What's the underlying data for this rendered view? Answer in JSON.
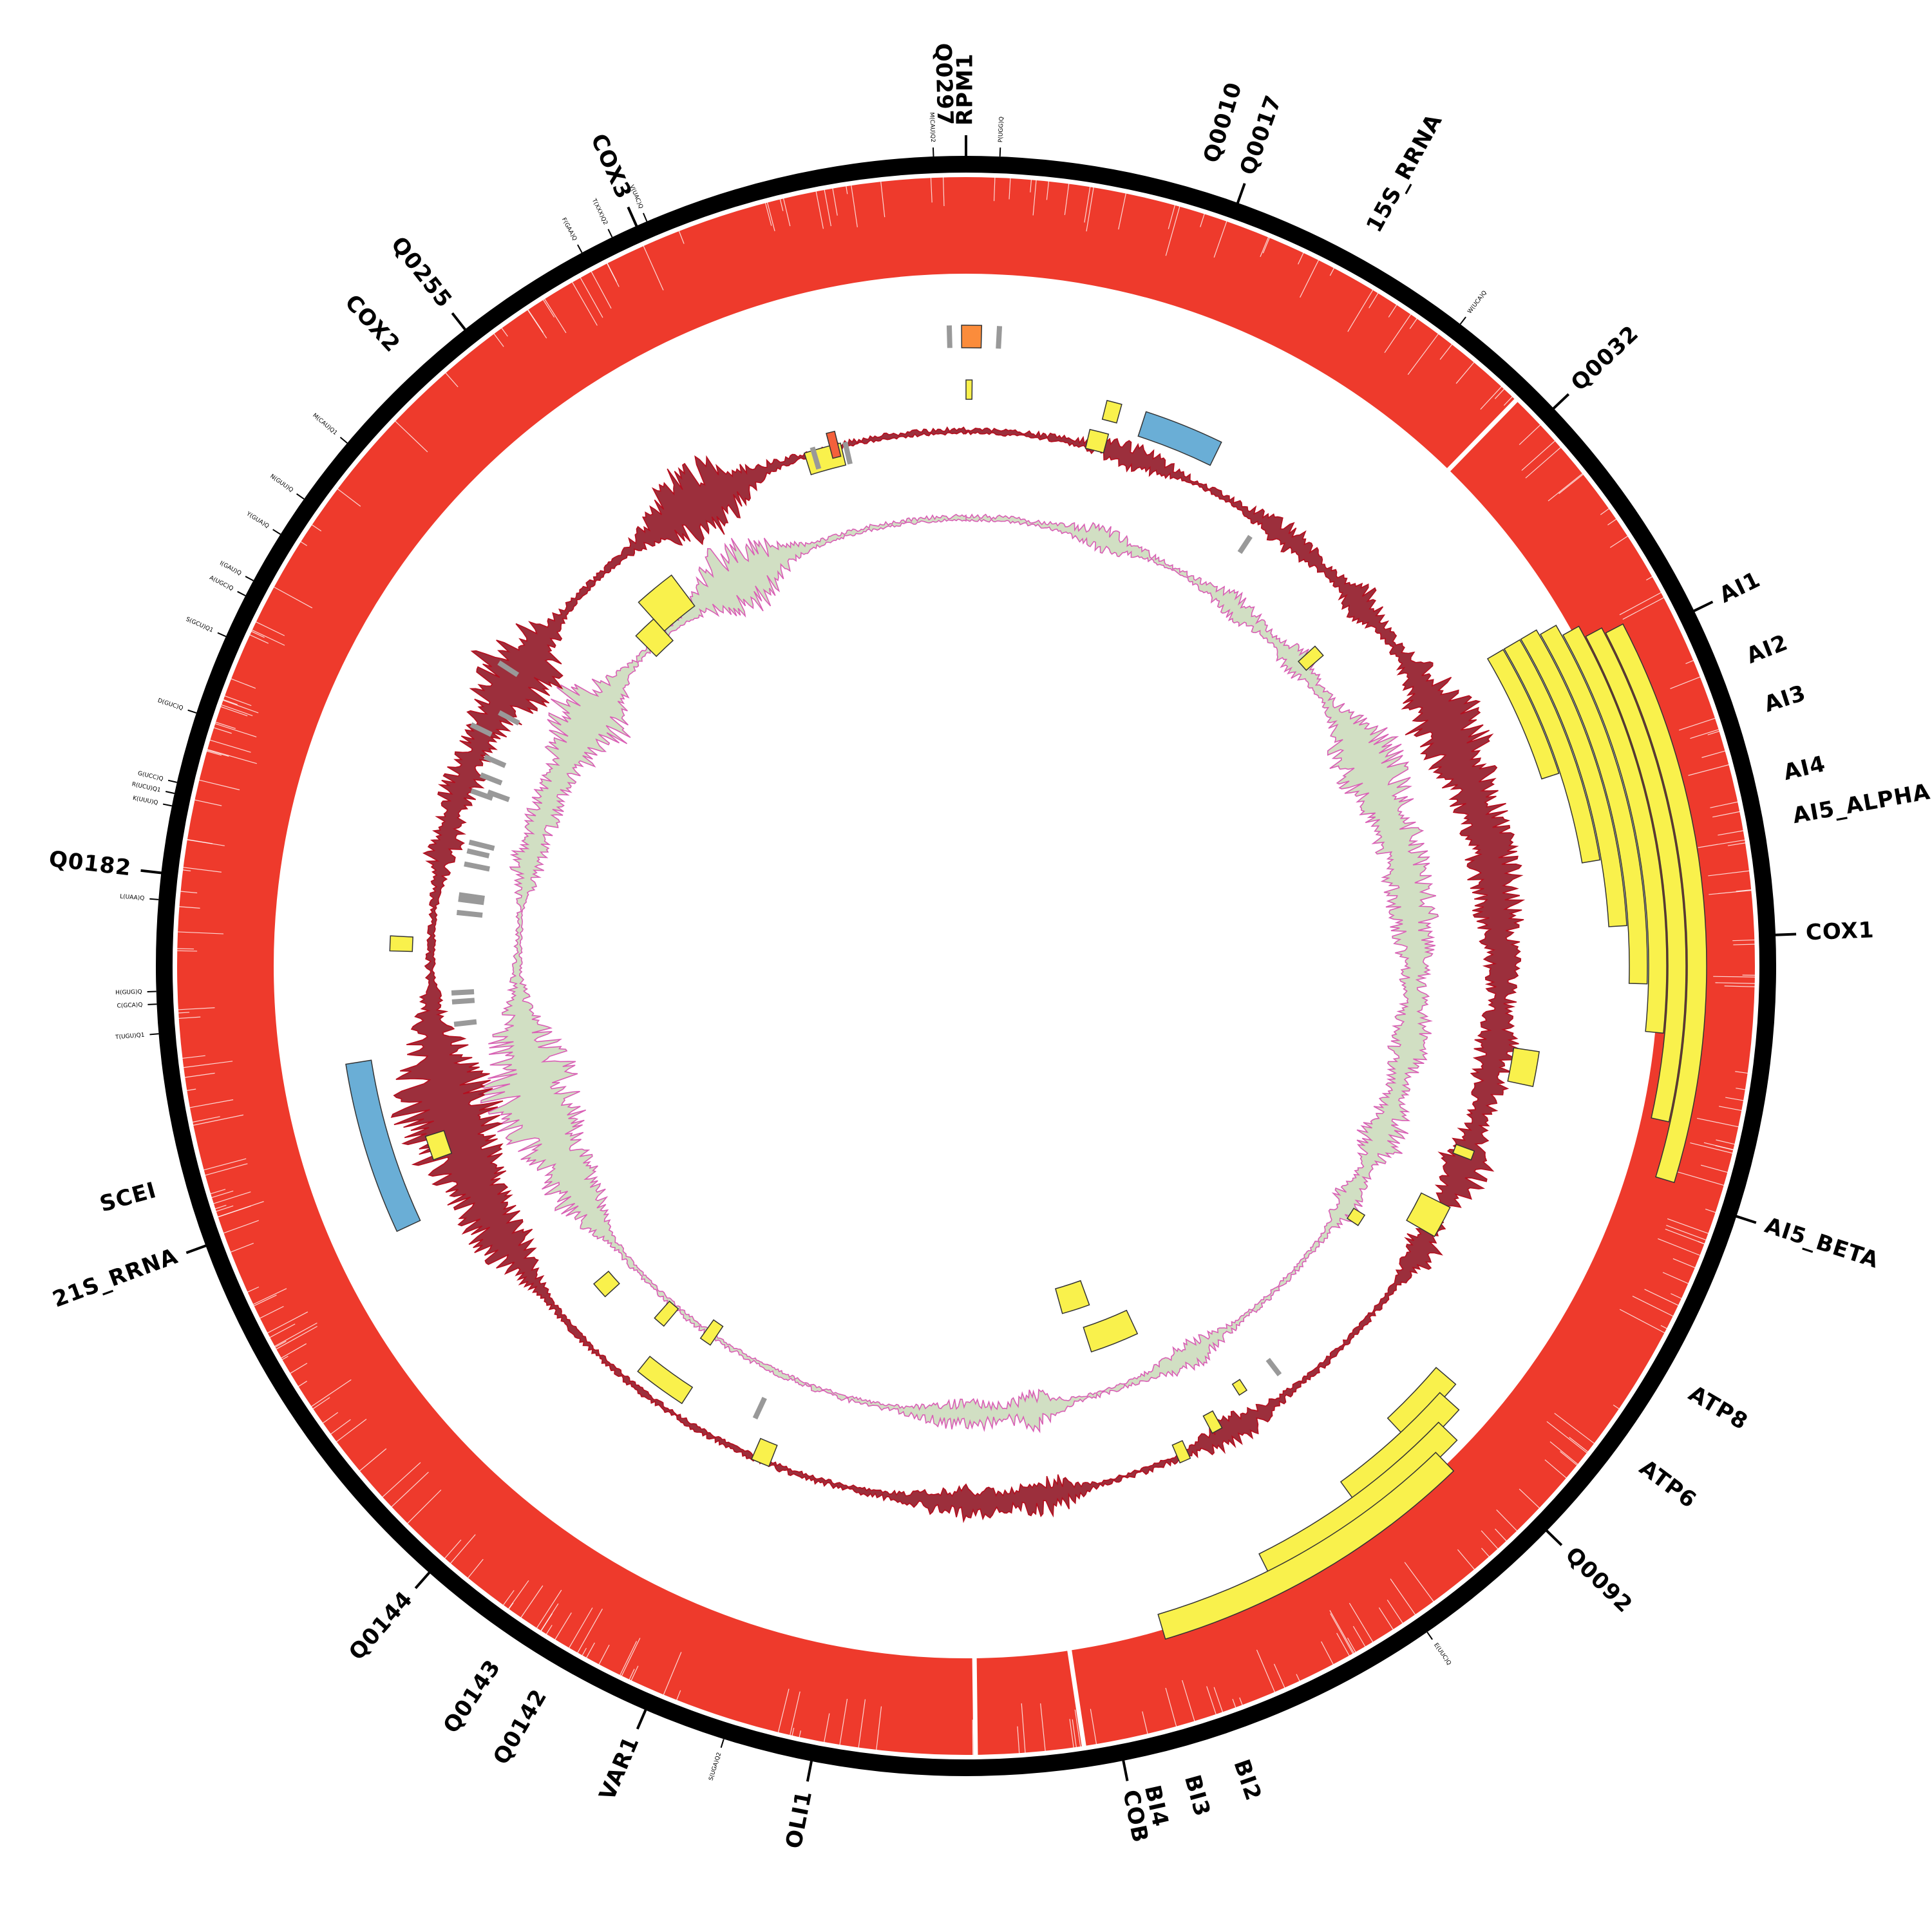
{
  "colors": {
    "outer_ring": "#000000",
    "coverage": "#ee3a2c",
    "exon": "#f9f14c",
    "rrna": "#6aaed6",
    "trna_tick": "#999999",
    "orange_feature": "#fb8c3b",
    "red_feature": "#f4603b",
    "gc_line": "#b50e1e",
    "gc_fill": "#8b0a1a",
    "skew_line": "#d95fb5",
    "skew_fill": "#c9d9b8"
  },
  "gene_labels": [
    {
      "text": "RPM1",
      "angle": 0.0,
      "tick": true
    },
    {
      "text": "Q0297",
      "angle": -1.5,
      "tick": false
    },
    {
      "text": "Q0010",
      "angle": 17.0,
      "tick": false
    },
    {
      "text": "Q0017",
      "angle": 19.6,
      "tick": true
    },
    {
      "text": "15S_RRNA",
      "angle": 29.0,
      "tick": false
    },
    {
      "text": "Q0032",
      "angle": 46.5,
      "tick": true
    },
    {
      "text": "AI1",
      "angle": 64.0,
      "tick": true
    },
    {
      "text": "AI2",
      "angle": 68.5,
      "tick": false
    },
    {
      "text": "AI3",
      "angle": 72.0,
      "tick": false
    },
    {
      "text": "AI4",
      "angle": 76.8,
      "tick": false
    },
    {
      "text": "AI5_ALPHA",
      "angle": 79.8,
      "tick": false
    },
    {
      "text": "COX1",
      "angle": 87.8,
      "tick": true
    },
    {
      "text": "AI5_BETA",
      "angle": 108.0,
      "tick": true
    },
    {
      "text": "ATP8",
      "angle": 120.5,
      "tick": false
    },
    {
      "text": "ATP6",
      "angle": 126.5,
      "tick": false
    },
    {
      "text": "Q0092",
      "angle": 134.2,
      "tick": true
    },
    {
      "text": "BI2",
      "angle": 161.0,
      "tick": false
    },
    {
      "text": "BI3",
      "angle": 164.5,
      "tick": false
    },
    {
      "text": "BI4",
      "angle": 167.3,
      "tick": false
    },
    {
      "text": "COB",
      "angle": 168.8,
      "tick": true
    },
    {
      "text": "OLI1",
      "angle": 191.0,
      "tick": true
    },
    {
      "text": "VAR1",
      "angle": 203.3,
      "tick": true
    },
    {
      "text": "Q0142",
      "angle": 210.3,
      "tick": false
    },
    {
      "text": "Q0143",
      "angle": 214.0,
      "tick": false
    },
    {
      "text": "Q0144",
      "angle": 221.5,
      "tick": true
    },
    {
      "text": "21S_RRNA",
      "angle": 249.8,
      "tick": true
    },
    {
      "text": "SCEI",
      "angle": 254.5,
      "tick": false
    },
    {
      "text": "Q0182",
      "angle": 276.6,
      "tick": true
    },
    {
      "text": "COX2",
      "angle": 317.2,
      "tick": false
    },
    {
      "text": "Q0255",
      "angle": 321.8,
      "tick": true
    },
    {
      "text": "COX3",
      "angle": 336.0,
      "tick": true
    }
  ],
  "trna_labels": [
    {
      "text": "M(CAU)Q2",
      "angle": -2.3
    },
    {
      "text": "P(UGG)Q",
      "angle": 2.4
    },
    {
      "text": "W(UCA)Q",
      "angle": 37.6
    },
    {
      "text": "E(UUC)Q",
      "angle": 145.3
    },
    {
      "text": "S(UGA)Q2",
      "angle": 197.4
    },
    {
      "text": "T(UGU)Q1",
      "angle": 265.2
    },
    {
      "text": "C(GCA)Q",
      "angle": 267.3
    },
    {
      "text": "H(GUG)Q",
      "angle": 268.2
    },
    {
      "text": "L(UAA)Q",
      "angle": 274.7
    },
    {
      "text": "K(UUU)Q",
      "angle": 281.4
    },
    {
      "text": "R(UCU)Q1",
      "angle": 282.3
    },
    {
      "text": "G(UCC)Q",
      "angle": 283.1
    },
    {
      "text": "D(GUC)Q",
      "angle": 288.2
    },
    {
      "text": "S(GCU)Q1",
      "angle": 294.0
    },
    {
      "text": "A(UGC)Q",
      "angle": 297.2
    },
    {
      "text": "I(GAU)Q",
      "angle": 298.4
    },
    {
      "text": "Y(GUA)Q",
      "angle": 302.2
    },
    {
      "text": "N(GUU)Q",
      "angle": 305.2
    },
    {
      "text": "M(CAU)Q1",
      "angle": 310.2
    },
    {
      "text": "F(GAA)Q",
      "angle": 331.7
    },
    {
      "text": "T(XXX)Q2",
      "angle": 334.1
    },
    {
      "text": "V(UAC)Q",
      "angle": 336.8
    }
  ],
  "coverage_gaps": [
    44.2,
    171.4,
    179.3
  ],
  "exon_features": [
    {
      "a1": 62.5,
      "a2": 107.0,
      "r1": 1120,
      "r2": 1150
    },
    {
      "a1": 62.0,
      "a2": 102.5,
      "r1": 1090,
      "r2": 1118
    },
    {
      "a1": 61.0,
      "a2": 95.5,
      "r1": 1060,
      "r2": 1088
    },
    {
      "a1": 60.0,
      "a2": 91.5,
      "r1": 1030,
      "r2": 1058
    },
    {
      "a1": 59.5,
      "a2": 86.5,
      "r1": 1000,
      "r2": 1028
    },
    {
      "a1": 59.5,
      "a2": 80.5,
      "r1": 970,
      "r2": 998
    },
    {
      "a1": 59.5,
      "a2": 72.0,
      "r1": 940,
      "r2": 968
    },
    {
      "a1": 0.0,
      "a2": 0.6,
      "r1": 880,
      "r2": 910
    },
    {
      "a1": 14.0,
      "a2": 15.5,
      "r1": 875,
      "r2": 905
    },
    {
      "a1": 13.0,
      "a2": 15.0,
      "r1": 825,
      "r2": 855
    },
    {
      "a1": -17.5,
      "a2": -13.5,
      "r1": 800,
      "r2": 835
    },
    {
      "a1": -42.0,
      "a2": -37.0,
      "r1": 700,
      "r2": 760
    },
    {
      "a1": -45.0,
      "a2": -42.0,
      "r1": 680,
      "r2": 725
    },
    {
      "a1": 47.5,
      "a2": 49.0,
      "r1": 700,
      "r2": 735
    },
    {
      "a1": 98.5,
      "a2": 102.0,
      "r1": 860,
      "r2": 900
    },
    {
      "a1": 110.0,
      "a2": 111.0,
      "r1": 810,
      "r2": 840
    },
    {
      "a1": 116.5,
      "a2": 120.0,
      "r1": 790,
      "r2": 840
    },
    {
      "a1": 122.0,
      "a2": 123.5,
      "r1": 710,
      "r2": 730
    },
    {
      "a1": 130.5,
      "a2": 137.0,
      "r1": 960,
      "r2": 1000
    },
    {
      "a1": 132.0,
      "a2": 144.0,
      "r1": 990,
      "r2": 1030
    },
    {
      "a1": 134.0,
      "a2": 153.5,
      "r1": 1020,
      "r2": 1060
    },
    {
      "a1": 136.0,
      "a2": 163.5,
      "r1": 1050,
      "r2": 1090
    },
    {
      "a1": 146.5,
      "a2": 147.5,
      "r1": 770,
      "r2": 790
    },
    {
      "a1": 151.0,
      "a2": 152.2,
      "r1": 790,
      "r2": 820
    },
    {
      "a1": 155.5,
      "a2": 156.7,
      "r1": 810,
      "r2": 840
    },
    {
      "a1": 155.0,
      "a2": 162.0,
      "r1": 590,
      "r2": 630
    },
    {
      "a1": 160.0,
      "a2": 164.5,
      "r1": 520,
      "r2": 560
    },
    {
      "a1": 201.5,
      "a2": 203.5,
      "r1": 800,
      "r2": 835
    },
    {
      "a1": 213.0,
      "a2": 219.0,
      "r1": 780,
      "r2": 810
    },
    {
      "a1": 214.0,
      "a2": 215.5,
      "r1": 675,
      "r2": 710
    },
    {
      "a1": 220.0,
      "a2": 221.5,
      "r1": 695,
      "r2": 730
    },
    {
      "a1": 227.5,
      "a2": 229.5,
      "r1": 730,
      "r2": 760
    },
    {
      "a1": 250.0,
      "a2": 252.5,
      "r1": 850,
      "r2": 880
    },
    {
      "a1": 271.5,
      "a2": 273.0,
      "r1": 860,
      "r2": 895
    }
  ],
  "rrna_features": [
    {
      "a1": 18.0,
      "a2": 26.0,
      "r1": 865,
      "r2": 905
    },
    {
      "a1": 245.0,
      "a2": 261.0,
      "r1": 935,
      "r2": 975
    }
  ],
  "orange_features": [
    {
      "a1": -0.4,
      "a2": 1.4,
      "r1": 960,
      "r2": 995
    }
  ],
  "red_features": [
    {
      "a1": -14.7,
      "a2": -13.8,
      "r1": 815,
      "r2": 855
    }
  ],
  "trna_features": [
    {
      "a": -1.5,
      "r1": 960,
      "r2": 995
    },
    {
      "a": 3.0,
      "r1": 960,
      "r2": 995
    },
    {
      "a": -16.5,
      "r1": 805,
      "r2": 840
    },
    {
      "a": -13.0,
      "r1": 800,
      "r2": 835
    },
    {
      "a": 33.5,
      "r1": 770,
      "r2": 800
    },
    {
      "a": 142.5,
      "r1": 770,
      "r2": 800
    },
    {
      "a": 205.0,
      "r1": 740,
      "r2": 775
    },
    {
      "a": -57.0,
      "r1": 830,
      "r2": 865
    },
    {
      "a": -64.0,
      "r1": 820,
      "r2": 855
    },
    {
      "a": -61.5,
      "r1": 790,
      "r2": 825
    },
    {
      "a": -66.5,
      "r1": 780,
      "r2": 815
    },
    {
      "a": -68.5,
      "r1": 775,
      "r2": 810
    },
    {
      "a": -70.5,
      "r1": 780,
      "r2": 815
    },
    {
      "a": -70.0,
      "r1": 755,
      "r2": 790
    },
    {
      "a": -77.0,
      "r1": 760,
      "r2": 795
    },
    {
      "a": -76.0,
      "r1": 755,
      "r2": 795
    },
    {
      "a": -78.5,
      "r1": 755,
      "r2": 795
    },
    {
      "a": -82.0,
      "r1": 755,
      "r2": 795
    },
    {
      "a": -82.5,
      "r1": 755,
      "r2": 795
    },
    {
      "a": -84.0,
      "r1": 755,
      "r2": 795
    },
    {
      "a": -93.0,
      "r1": 765,
      "r2": 800
    },
    {
      "a": -94.0,
      "r1": 765,
      "r2": 800
    },
    {
      "a": -96.5,
      "r1": 765,
      "r2": 800
    }
  ],
  "signal_hotspots": [
    {
      "angle": -30.0,
      "width": 4.0,
      "amp": 3.5
    },
    {
      "angle": -55.5,
      "width": 3.0,
      "amp": 2.5
    },
    {
      "angle": -77.0,
      "width": 2.5,
      "amp": 1.2
    },
    {
      "angle": 62.0,
      "width": 4.0,
      "amp": 2.0
    },
    {
      "angle": 71.0,
      "width": 8.0,
      "amp": 1.8
    },
    {
      "angle": 85.0,
      "width": 6.0,
      "amp": 1.4
    },
    {
      "angle": 100.0,
      "width": 4.0,
      "amp": 1.5
    },
    {
      "angle": 112.0,
      "width": 3.0,
      "amp": 2.0
    },
    {
      "angle": 122.0,
      "width": 2.0,
      "amp": 1.4
    },
    {
      "angle": 150.0,
      "width": 3.0,
      "amp": 1.2
    },
    {
      "angle": 171.0,
      "width": 2.0,
      "amp": 1.5
    },
    {
      "angle": 180.0,
      "width": 4.0,
      "amp": 1.2
    },
    {
      "angle": 240.0,
      "width": 4.0,
      "amp": 2.0
    },
    {
      "angle": 251.0,
      "width": 5.0,
      "amp": 3.0
    },
    {
      "angle": 258.0,
      "width": 5.0,
      "amp": 2.5
    },
    {
      "angle": 290.0,
      "width": 3.0,
      "amp": 1.3
    },
    {
      "angle": 300.0,
      "width": 4.0,
      "amp": 2.0
    },
    {
      "angle": 18.0,
      "width": 3.0,
      "amp": 1.0
    },
    {
      "angle": 37.0,
      "width": 3.0,
      "amp": 1.0
    },
    {
      "angle": 47.5,
      "width": 2.0,
      "amp": 1.3
    }
  ]
}
